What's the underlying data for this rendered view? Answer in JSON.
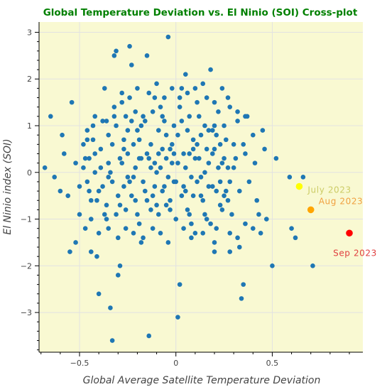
{
  "chart_data": {
    "type": "scatter",
    "title": "Global Temperature Deviation vs. El Ninio (SOI) Cross-plot",
    "xlabel": "Global Average Satellite Temperature Deviation",
    "ylabel": "El Ninio index (SOI)",
    "xlim": [
      -0.71,
      0.97
    ],
    "ylim": [
      -3.85,
      3.22
    ],
    "xticks": [
      -0.5,
      0,
      0.5
    ],
    "yticks": [
      -3,
      -2,
      -1,
      0,
      1,
      2,
      3
    ],
    "xtick_labels": [
      "−0.5",
      "0",
      "0.5"
    ],
    "ytick_labels": [
      "−3",
      "−2",
      "−1",
      "0",
      "1",
      "2",
      "3"
    ],
    "grid": true,
    "colors": {
      "background": "#f9f9d2",
      "points": "#1f77b4",
      "title": "#008000",
      "july": "#ffff00",
      "aug": "#ffa500",
      "sep": "#ff0000"
    },
    "series": [
      {
        "points": [
          [
            -0.68,
            0.1
          ],
          [
            -0.65,
            1.2
          ],
          [
            -0.63,
            -0.1
          ],
          [
            -0.6,
            -0.4
          ],
          [
            -0.59,
            0.8
          ],
          [
            -0.58,
            0.4
          ],
          [
            -0.56,
            -0.5
          ],
          [
            -0.55,
            -1.7
          ],
          [
            -0.54,
            1.5
          ],
          [
            -0.52,
            -1.5
          ],
          [
            -0.5,
            -0.9
          ],
          [
            -0.48,
            0.6
          ],
          [
            -0.47,
            -1.2
          ],
          [
            -0.46,
            -0.2
          ],
          [
            -0.45,
            0.3
          ],
          [
            -0.44,
            -0.6
          ],
          [
            -0.43,
            1.0
          ],
          [
            -0.42,
            0.0
          ],
          [
            -0.41,
            -1.8
          ],
          [
            -0.4,
            -2.6
          ],
          [
            -0.39,
            0.5
          ],
          [
            -0.38,
            -0.3
          ],
          [
            -0.37,
            1.8
          ],
          [
            -0.36,
            -1.0
          ],
          [
            -0.35,
            0.2
          ],
          [
            -0.34,
            -2.9
          ],
          [
            -0.33,
            -3.6
          ],
          [
            -0.32,
            2.5
          ],
          [
            -0.31,
            2.6
          ],
          [
            -0.3,
            -2.2
          ],
          [
            -0.29,
            -2.0
          ],
          [
            -0.28,
            1.5
          ],
          [
            -0.27,
            0.7
          ],
          [
            -0.26,
            -0.8
          ],
          [
            -0.25,
            0.4
          ],
          [
            -0.24,
            2.7
          ],
          [
            -0.23,
            2.3
          ],
          [
            -0.22,
            -0.1
          ],
          [
            -0.21,
            1.3
          ],
          [
            -0.2,
            0.9
          ],
          [
            -0.19,
            -1.1
          ],
          [
            -0.18,
            0.3
          ],
          [
            -0.17,
            -1.4
          ],
          [
            -0.16,
            1.1
          ],
          [
            -0.15,
            2.5
          ],
          [
            -0.14,
            -3.5
          ],
          [
            -0.13,
            0.6
          ],
          [
            -0.12,
            -0.5
          ],
          [
            -0.11,
            1.6
          ],
          [
            -0.1,
            0.0
          ],
          [
            -0.09,
            -0.9
          ],
          [
            -0.08,
            1.4
          ],
          [
            -0.07,
            0.5
          ],
          [
            -0.06,
            -0.3
          ],
          [
            -0.05,
            0.8
          ],
          [
            -0.04,
            2.9
          ],
          [
            -0.03,
            -0.6
          ],
          [
            -0.02,
            0.2
          ],
          [
            -0.01,
            1.0
          ],
          [
            0.0,
            -0.2
          ],
          [
            0.01,
            -3.1
          ],
          [
            0.02,
            -2.4
          ],
          [
            0.03,
            1.8
          ],
          [
            0.04,
            0.4
          ],
          [
            0.05,
            2.1
          ],
          [
            0.06,
            -0.8
          ],
          [
            0.07,
            1.2
          ],
          [
            0.08,
            -0.1
          ],
          [
            0.09,
            0.7
          ],
          [
            0.1,
            -1.3
          ],
          [
            0.11,
            1.5
          ],
          [
            0.12,
            0.3
          ],
          [
            0.13,
            -0.5
          ],
          [
            0.14,
            1.9
          ],
          [
            0.15,
            0.0
          ],
          [
            0.16,
            -1.0
          ],
          [
            0.17,
            0.9
          ],
          [
            0.18,
            2.2
          ],
          [
            0.19,
            -0.3
          ],
          [
            0.2,
            0.5
          ],
          [
            0.21,
            -1.2
          ],
          [
            0.22,
            1.3
          ],
          [
            0.23,
            -0.7
          ],
          [
            0.24,
            0.2
          ],
          [
            0.25,
            1.0
          ],
          [
            0.26,
            -0.4
          ],
          [
            0.27,
            1.6
          ],
          [
            0.28,
            -1.7
          ],
          [
            0.3,
            0.1
          ],
          [
            0.32,
            1.1
          ],
          [
            0.33,
            -1.6
          ],
          [
            0.34,
            -2.7
          ],
          [
            0.35,
            -2.4
          ],
          [
            0.36,
            0.4
          ],
          [
            0.37,
            1.2
          ],
          [
            0.4,
            0.8
          ],
          [
            0.42,
            -0.6
          ],
          [
            0.45,
            0.9
          ],
          [
            0.47,
            -1.0
          ],
          [
            0.5,
            -2.0
          ],
          [
            0.52,
            0.3
          ],
          [
            0.59,
            -0.1
          ],
          [
            0.6,
            -1.2
          ],
          [
            0.62,
            -1.4
          ],
          [
            0.66,
            -0.1
          ],
          [
            0.71,
            -2.0
          ],
          [
            -0.48,
            0.1
          ],
          [
            -0.46,
            0.9
          ],
          [
            -0.44,
            -1.0
          ],
          [
            -0.42,
            0.4
          ],
          [
            -0.4,
            -0.4
          ],
          [
            -0.38,
            1.1
          ],
          [
            -0.36,
            -0.7
          ],
          [
            -0.34,
            0.0
          ],
          [
            -0.32,
            1.4
          ],
          [
            -0.3,
            -0.5
          ],
          [
            -0.28,
            0.2
          ],
          [
            -0.26,
            1.2
          ],
          [
            -0.24,
            -0.2
          ],
          [
            -0.22,
            0.6
          ],
          [
            -0.2,
            -0.9
          ],
          [
            -0.18,
            1.0
          ],
          [
            -0.16,
            -0.4
          ],
          [
            -0.14,
            0.3
          ],
          [
            -0.12,
            1.3
          ],
          [
            -0.1,
            -0.7
          ],
          [
            -0.08,
            0.1
          ],
          [
            -0.06,
            1.1
          ],
          [
            -0.04,
            -0.1
          ],
          [
            -0.02,
            0.6
          ],
          [
            0.0,
            -1.0
          ],
          [
            0.02,
            1.4
          ],
          [
            0.04,
            -0.3
          ],
          [
            0.06,
            0.9
          ],
          [
            0.08,
            -1.1
          ],
          [
            0.1,
            0.3
          ],
          [
            0.12,
            1.2
          ],
          [
            0.14,
            -0.6
          ],
          [
            0.16,
            0.5
          ],
          [
            0.18,
            -1.1
          ],
          [
            0.2,
            1.0
          ],
          [
            0.22,
            0.1
          ],
          [
            0.24,
            -0.8
          ],
          [
            0.26,
            0.7
          ],
          [
            0.28,
            -0.2
          ],
          [
            0.3,
            0.6
          ],
          [
            -0.35,
            -0.1
          ],
          [
            -0.33,
            0.6
          ],
          [
            -0.31,
            -0.9
          ],
          [
            -0.29,
            0.3
          ],
          [
            -0.27,
            -0.3
          ],
          [
            -0.25,
            0.9
          ],
          [
            -0.23,
            -0.5
          ],
          [
            -0.21,
            0.1
          ],
          [
            -0.19,
            0.7
          ],
          [
            -0.17,
            -0.2
          ],
          [
            -0.15,
            0.4
          ],
          [
            -0.13,
            -0.8
          ],
          [
            -0.11,
            0.2
          ],
          [
            -0.09,
            0.9
          ],
          [
            -0.07,
            -0.4
          ],
          [
            -0.05,
            0.3
          ],
          [
            -0.03,
            -0.8
          ],
          [
            -0.01,
            0.4
          ],
          [
            0.01,
            0.8
          ],
          [
            0.03,
            -0.5
          ],
          [
            0.05,
            0.1
          ],
          [
            0.07,
            -0.9
          ],
          [
            0.09,
            0.5
          ],
          [
            0.11,
            -0.2
          ],
          [
            0.13,
            0.8
          ],
          [
            0.15,
            -0.9
          ],
          [
            0.17,
            0.2
          ],
          [
            0.19,
            0.9
          ],
          [
            0.21,
            -0.4
          ],
          [
            0.23,
            0.6
          ],
          [
            0.25,
            -0.5
          ],
          [
            0.27,
            0.1
          ],
          [
            0.29,
            -0.9
          ],
          [
            0.31,
            0.3
          ],
          [
            0.33,
            -0.4
          ],
          [
            0.35,
            0.6
          ],
          [
            0.38,
            -0.2
          ],
          [
            0.41,
            0.2
          ],
          [
            0.43,
            -0.9
          ],
          [
            0.46,
            0.5
          ],
          [
            -0.52,
            0.2
          ],
          [
            -0.5,
            -0.3
          ],
          [
            -0.47,
            0.3
          ],
          [
            -0.45,
            -0.4
          ],
          [
            -0.43,
            0.7
          ],
          [
            -0.41,
            -0.6
          ],
          [
            -0.39,
            0.1
          ],
          [
            -0.37,
            -0.9
          ],
          [
            -0.35,
            0.8
          ],
          [
            -0.33,
            -0.2
          ],
          [
            -0.31,
            1.0
          ],
          [
            -0.29,
            -0.7
          ],
          [
            -0.27,
            0.5
          ],
          [
            -0.25,
            -0.1
          ],
          [
            -0.23,
            1.1
          ],
          [
            -0.21,
            -0.6
          ],
          [
            -0.19,
            0.3
          ],
          [
            -0.17,
            1.2
          ],
          [
            -0.15,
            -0.6
          ],
          [
            -0.13,
            0.1
          ],
          [
            -0.11,
            -0.3
          ],
          [
            -0.09,
            0.4
          ],
          [
            -0.07,
            1.2
          ],
          [
            -0.05,
            -0.7
          ],
          [
            -0.03,
            0.5
          ],
          [
            -0.01,
            -0.2
          ],
          [
            0.01,
            0.2
          ],
          [
            0.03,
            1.1
          ],
          [
            0.05,
            -0.4
          ],
          [
            0.07,
            0.4
          ],
          [
            0.09,
            -0.5
          ],
          [
            0.11,
            0.6
          ],
          [
            0.13,
            -0.1
          ],
          [
            0.15,
            1.0
          ],
          [
            0.17,
            -0.3
          ],
          [
            0.19,
            0.4
          ],
          [
            0.21,
            0.8
          ],
          [
            0.23,
            -0.2
          ],
          [
            0.25,
            0.3
          ],
          [
            0.27,
            -0.6
          ],
          [
            -0.26,
            -1.2
          ],
          [
            -0.22,
            -1.3
          ],
          [
            -0.18,
            -1.5
          ],
          [
            -0.12,
            -1.2
          ],
          [
            -0.08,
            -1.3
          ],
          [
            -0.04,
            -1.5
          ],
          [
            0.04,
            -1.2
          ],
          [
            0.08,
            -1.4
          ],
          [
            0.14,
            -1.3
          ],
          [
            0.2,
            -1.5
          ],
          [
            -0.3,
            -1.4
          ],
          [
            -0.35,
            -1.2
          ],
          [
            -0.4,
            -1.3
          ],
          [
            -0.44,
            -1.7
          ],
          [
            0.28,
            -1.3
          ],
          [
            0.32,
            -1.4
          ],
          [
            0.36,
            -1.1
          ],
          [
            0.4,
            -1.2
          ],
          [
            0.44,
            -1.3
          ],
          [
            0.2,
            -1.7
          ],
          [
            -0.28,
            1.7
          ],
          [
            -0.24,
            1.6
          ],
          [
            -0.2,
            1.8
          ],
          [
            -0.14,
            1.7
          ],
          [
            -0.1,
            1.9
          ],
          [
            -0.06,
            1.6
          ],
          [
            -0.02,
            1.8
          ],
          [
            0.02,
            1.6
          ],
          [
            0.06,
            1.7
          ],
          [
            0.1,
            1.8
          ],
          [
            0.16,
            1.6
          ],
          [
            0.2,
            1.5
          ],
          [
            0.24,
            1.8
          ],
          [
            0.28,
            1.4
          ],
          [
            0.32,
            1.3
          ],
          [
            0.36,
            1.2
          ],
          [
            -0.32,
            1.2
          ],
          [
            -0.36,
            1.1
          ],
          [
            -0.42,
            1.2
          ],
          [
            -0.46,
            0.7
          ]
        ]
      }
    ],
    "highlights": [
      {
        "label": "July 2023",
        "x": 0.64,
        "y": -0.3,
        "color": "#ffff00",
        "label_color": "#cccc66"
      },
      {
        "label": "Aug 2023",
        "x": 0.7,
        "y": -0.8,
        "color": "#ffa500",
        "label_color": "#f0a040"
      },
      {
        "label": "Sep 2023",
        "x": 0.9,
        "y": -1.3,
        "color": "#ff0000",
        "label_color": "#e04040"
      }
    ]
  }
}
